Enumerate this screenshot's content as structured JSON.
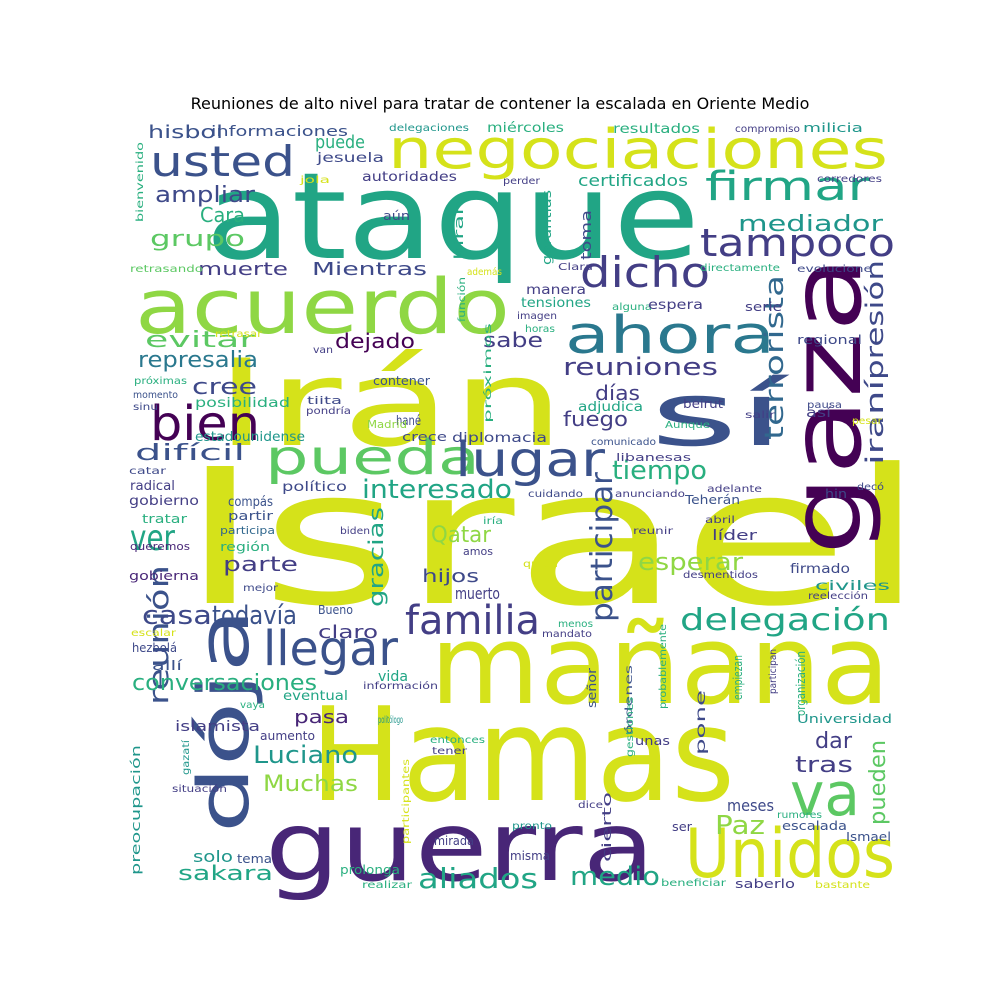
{
  "title": "Reuniones de alto nivel para tratar de contener la escalada en Oriente Medio",
  "colors": {
    "yellow": "#d5e21a",
    "lime": "#8fd744",
    "green": "#5cc863",
    "teal": "#21a585",
    "tealdark": "#1f968b",
    "blue": "#2a788e",
    "slate": "#3b528b",
    "indigo": "#433e85",
    "purple": "#440154",
    "violet": "#482677",
    "lightgreen": "#a0da39",
    "cyan": "#29af7f",
    "ocean": "#31688e",
    "deep": "#3e4989"
  },
  "words": [
    "Israel",
    "Hamas",
    "mañana",
    "ataque",
    "guerra",
    "Irán",
    "gaza",
    "Unidos",
    "acuerdo",
    "dója",
    "negociaciones",
    "ahora",
    "sí",
    "va",
    "pueda",
    "lugar",
    "bien",
    "llegar",
    "firmar",
    "usted",
    "dicho",
    "tampoco",
    "familia",
    "delegación",
    "reuniones",
    "ver",
    "reunión",
    "aliados",
    "Luciano",
    "terrorista",
    "presión",
    "iraní",
    "participar",
    "interesado",
    "tiempo",
    "esperar",
    "casa",
    "todavía",
    "conversaciones",
    "Paz",
    "medio",
    "pueden",
    "tras",
    "dar",
    "grupo",
    "mediador",
    "ampliar",
    "certificados",
    "hisbol",
    "represalia",
    "evitar",
    "dejado",
    "sabe",
    "cree",
    "días",
    "fuego",
    "difícil",
    "gracias",
    "Qatar",
    "hijos",
    "parte",
    "muerto",
    "claro",
    "muerte",
    "Mientras",
    "Muchas",
    "pasa",
    "sakara",
    "solo",
    "meses",
    "vida",
    "Cara",
    "puede",
    "informaciones",
    "autoridades",
    "jesuela",
    "miércoles",
    "resultados",
    "compromiso",
    "milicia",
    "delegaciones",
    "perder",
    "corredores",
    "bienvenido",
    "jola",
    "toma",
    "aún",
    "kiran",
    "garantías",
    "Clara",
    "manera",
    "tensiones",
    "alguna",
    "espera",
    "serie",
    "retrasando",
    "además",
    "función",
    "directamente",
    "evolucione",
    "imagen",
    "retrasar",
    "horas",
    "van",
    "regional",
    "próximas",
    "momento",
    "contener",
    "posibilidad",
    "tiita",
    "sinu",
    "pondría",
    "hané",
    "Madrid",
    "estadounidense",
    "crece",
    "diplomacia",
    "próximos",
    "adjudica",
    "beirut",
    "comunicado",
    "Aunque",
    "pausa",
    "pesar",
    "salir",
    "así",
    "libanesas",
    "catar",
    "radical",
    "gobierno",
    "político",
    "compás",
    "cuidando",
    "anunciando",
    "adelante",
    "Teherán",
    "decó",
    "hin",
    "tratar",
    "partir",
    "participa",
    "biden",
    "iría",
    "reunir",
    "abril",
    "líder",
    "región",
    "queremos",
    "amos",
    "gobierna",
    "quién",
    "firmado",
    "civiles",
    "desmentidos",
    "mejor",
    "reelección",
    "Bueno",
    "menos",
    "mandato",
    "escalar",
    "hezbolá",
    "allí",
    "eventual",
    "información",
    "señor",
    "órdenes",
    "probablemente",
    "empiezan",
    "participan",
    "organización",
    "Universidad",
    "vaya",
    "islamista",
    "pone",
    "politólogo",
    "aumento",
    "entonces",
    "tener",
    "gestiones",
    "unas",
    "gazatí",
    "situación",
    "preocupación",
    "participantes",
    "dice",
    "pronto",
    "cierto",
    "rumores",
    "ser",
    "escalada",
    "Ismael",
    "tema",
    "mirada",
    "misma",
    "prolonga",
    "realizar",
    "beneficiar",
    "saberlo",
    "bastante"
  ]
}
